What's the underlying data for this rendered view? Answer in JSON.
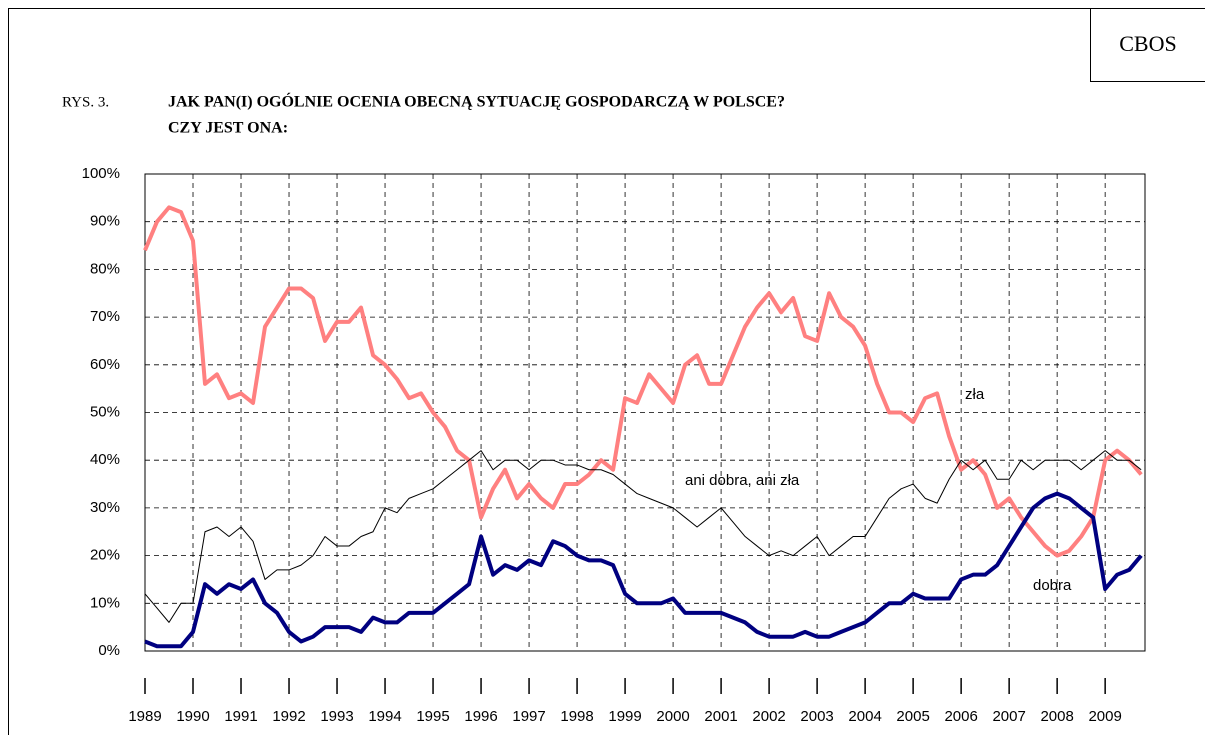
{
  "chart_data": {
    "type": "line",
    "source": "CBOS",
    "figure_label": "RYS. 3.",
    "title": [
      "JAK PAN(I) OGÓLNIE OCENIA OBECNĄ SYTUACJĘ GOSPODARCZĄ W POLSCE?",
      "CZY JEST ONA:"
    ],
    "x": [
      1989,
      1989.25,
      1989.5,
      1989.75,
      1990,
      1990.25,
      1990.5,
      1990.75,
      1991,
      1991.25,
      1991.5,
      1991.75,
      1992,
      1992.25,
      1992.5,
      1992.75,
      1993,
      1993.25,
      1993.5,
      1993.75,
      1994,
      1994.25,
      1994.5,
      1994.75,
      1995,
      1995.25,
      1995.5,
      1995.75,
      1996,
      1996.25,
      1996.5,
      1996.75,
      1997,
      1997.25,
      1997.5,
      1997.75,
      1998,
      1998.25,
      1998.5,
      1998.75,
      1999,
      1999.25,
      1999.5,
      1999.75,
      2000,
      2000.25,
      2000.5,
      2000.75,
      2001,
      2001.25,
      2001.5,
      2001.75,
      2002,
      2002.25,
      2002.5,
      2002.75,
      2003,
      2003.25,
      2003.5,
      2003.75,
      2004,
      2004.25,
      2004.5,
      2004.75,
      2005,
      2005.25,
      2005.5,
      2005.75,
      2006,
      2006.25,
      2006.5,
      2006.75,
      2007,
      2007.25,
      2007.5,
      2007.75,
      2008,
      2008.25,
      2008.5,
      2008.75,
      2009,
      2009.25,
      2009.5,
      2009.75
    ],
    "series": [
      {
        "name": "zła",
        "color": "#ff8080",
        "width": 4,
        "values": [
          84,
          90,
          93,
          92,
          86,
          56,
          58,
          53,
          54,
          52,
          68,
          72,
          76,
          76,
          74,
          65,
          69,
          69,
          72,
          62,
          60,
          57,
          53,
          54,
          50,
          47,
          42,
          40,
          28,
          34,
          38,
          32,
          35,
          32,
          30,
          35,
          35,
          37,
          40,
          38,
          53,
          52,
          58,
          55,
          52,
          60,
          62,
          56,
          56,
          62,
          68,
          72,
          75,
          71,
          74,
          66,
          65,
          75,
          70,
          68,
          64,
          56,
          50,
          50,
          48,
          53,
          54,
          45,
          38,
          40,
          37,
          30,
          32,
          28,
          25,
          22,
          20,
          21,
          24,
          28,
          40,
          42,
          40,
          37
        ]
      },
      {
        "name": "ani dobra, ani zła",
        "color": "#000000",
        "width": 1,
        "values": [
          12,
          9,
          6,
          10,
          10,
          25,
          26,
          24,
          26,
          23,
          15,
          17,
          17,
          18,
          20,
          24,
          22,
          22,
          24,
          25,
          30,
          29,
          32,
          33,
          34,
          36,
          38,
          40,
          42,
          38,
          40,
          40,
          38,
          40,
          40,
          39,
          39,
          38,
          38,
          37,
          35,
          33,
          32,
          31,
          30,
          28,
          26,
          28,
          30,
          27,
          24,
          22,
          20,
          21,
          20,
          22,
          24,
          20,
          22,
          24,
          24,
          28,
          32,
          34,
          35,
          32,
          31,
          36,
          40,
          38,
          40,
          36,
          36,
          40,
          38,
          40,
          40,
          40,
          38,
          40,
          42,
          40,
          40,
          38
        ]
      },
      {
        "name": "dobra",
        "color": "#000080",
        "width": 4,
        "values": [
          2,
          1,
          1,
          1,
          4,
          14,
          12,
          14,
          13,
          15,
          10,
          8,
          4,
          2,
          3,
          5,
          5,
          5,
          4,
          7,
          6,
          6,
          8,
          8,
          8,
          10,
          12,
          14,
          24,
          16,
          18,
          17,
          19,
          18,
          23,
          22,
          20,
          19,
          19,
          18,
          12,
          10,
          10,
          10,
          11,
          8,
          8,
          8,
          8,
          7,
          6,
          4,
          3,
          3,
          3,
          4,
          3,
          3,
          4,
          5,
          6,
          8,
          10,
          10,
          12,
          11,
          11,
          11,
          15,
          16,
          16,
          18,
          22,
          26,
          30,
          32,
          33,
          32,
          30,
          28,
          13,
          16,
          17,
          20
        ]
      }
    ],
    "xlim": [
      1989,
      2009.83
    ],
    "xticks": [
      1989,
      1990,
      1991,
      1992,
      1993,
      1994,
      1995,
      1996,
      1997,
      1998,
      1999,
      2000,
      2001,
      2002,
      2003,
      2004,
      2005,
      2006,
      2007,
      2008,
      2009
    ],
    "ylim": [
      0,
      100
    ],
    "yticks": [
      {
        "value": 0,
        "label": "0%"
      },
      {
        "value": 10,
        "label": "10%"
      },
      {
        "value": 20,
        "label": "20%"
      },
      {
        "value": 30,
        "label": "30%"
      },
      {
        "value": 40,
        "label": "40%"
      },
      {
        "value": 50,
        "label": "50%"
      },
      {
        "value": 60,
        "label": "60%"
      },
      {
        "value": 70,
        "label": "70%"
      },
      {
        "value": 80,
        "label": "80%"
      },
      {
        "value": 90,
        "label": "90%"
      },
      {
        "value": 100,
        "label": "100%"
      }
    ],
    "grid": true
  }
}
